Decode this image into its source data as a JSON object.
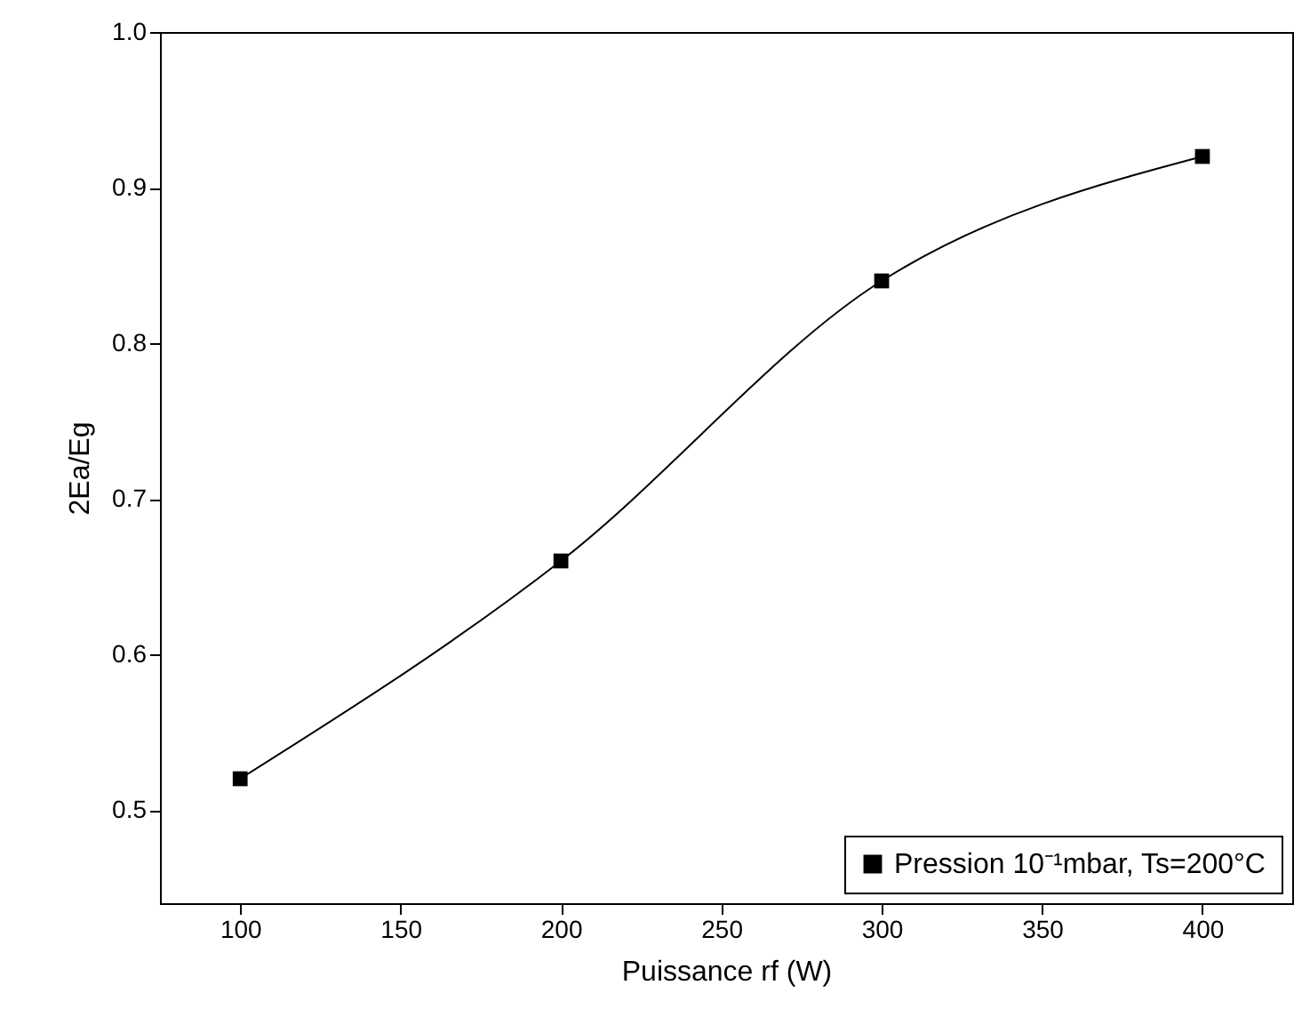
{
  "chart_data": {
    "type": "line",
    "xlabel": "Puissance rf (W)",
    "ylabel": "2Ea/Eg",
    "x": [
      100,
      200,
      300,
      400
    ],
    "series": [
      {
        "name": "Pression 10⁻¹mbar, Ts=200°C",
        "color": "#000000",
        "values": [
          0.52,
          0.66,
          0.84,
          0.92
        ]
      }
    ],
    "xlim": [
      75,
      428
    ],
    "ylim": [
      0.44,
      1.0
    ],
    "xticks": [
      100,
      150,
      200,
      250,
      300,
      350,
      400
    ],
    "yticks": [
      0.5,
      0.6,
      0.7,
      0.8,
      0.9,
      {
        "value": 1.0,
        "label": "1.0"
      }
    ],
    "grid": false,
    "legend": "bottom right",
    "marker": "square",
    "line_style": "solid"
  }
}
